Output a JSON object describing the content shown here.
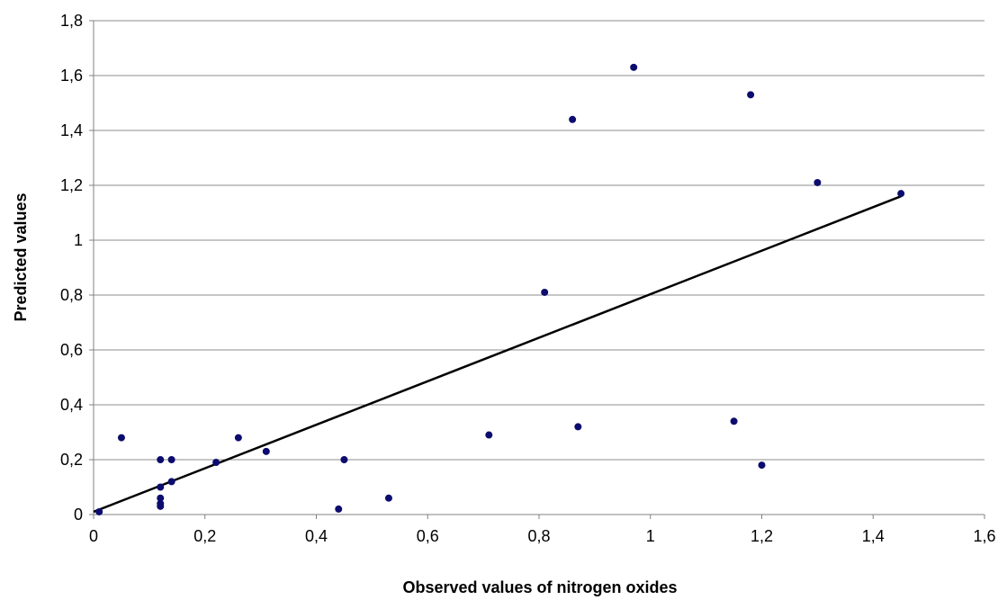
{
  "chart_data": {
    "type": "scatter",
    "title": "",
    "xlabel": "Observed values of nitrogen oxides",
    "ylabel": "Predicted values",
    "xlim": [
      0,
      1.6
    ],
    "ylim": [
      0,
      1.8
    ],
    "x_ticks": [
      0,
      0.2,
      0.4,
      0.6,
      0.8,
      1,
      1.2,
      1.4,
      1.6
    ],
    "y_ticks": [
      0,
      0.2,
      0.4,
      0.6,
      0.8,
      1,
      1.2,
      1.4,
      1.6,
      1.8
    ],
    "x_tick_labels": [
      "0",
      "0,2",
      "0,4",
      "0,6",
      "0,8",
      "1",
      "1,2",
      "1,4",
      "1,6"
    ],
    "y_tick_labels": [
      "0",
      "0,2",
      "0,4",
      "0,6",
      "0,8",
      "1",
      "1,2",
      "1,4",
      "1,6",
      "1,8"
    ],
    "grid": {
      "horizontal": true,
      "vertical": false
    },
    "legend": "none",
    "series": [
      {
        "points": [
          [
            0.01,
            0.01
          ],
          [
            0.05,
            0.28
          ],
          [
            0.12,
            0.2
          ],
          [
            0.12,
            0.1
          ],
          [
            0.12,
            0.06
          ],
          [
            0.12,
            0.04
          ],
          [
            0.12,
            0.03
          ],
          [
            0.14,
            0.2
          ],
          [
            0.14,
            0.12
          ],
          [
            0.22,
            0.19
          ],
          [
            0.26,
            0.28
          ],
          [
            0.31,
            0.23
          ],
          [
            0.44,
            0.02
          ],
          [
            0.45,
            0.2
          ],
          [
            0.53,
            0.06
          ],
          [
            0.71,
            0.29
          ],
          [
            0.81,
            0.81
          ],
          [
            0.86,
            1.44
          ],
          [
            0.87,
            0.32
          ],
          [
            0.97,
            1.63
          ],
          [
            1.15,
            0.34
          ],
          [
            1.18,
            1.53
          ],
          [
            1.2,
            0.18
          ],
          [
            1.3,
            1.21
          ],
          [
            1.45,
            1.17
          ]
        ]
      }
    ],
    "trendline": {
      "type": "linear",
      "x": [
        0,
        1.45
      ],
      "y": [
        0.01,
        1.16
      ]
    },
    "colors": {
      "points": "#0c0c6e",
      "trendline": "#000000",
      "grid": "#8c8c8c",
      "axis": "#808080"
    }
  }
}
